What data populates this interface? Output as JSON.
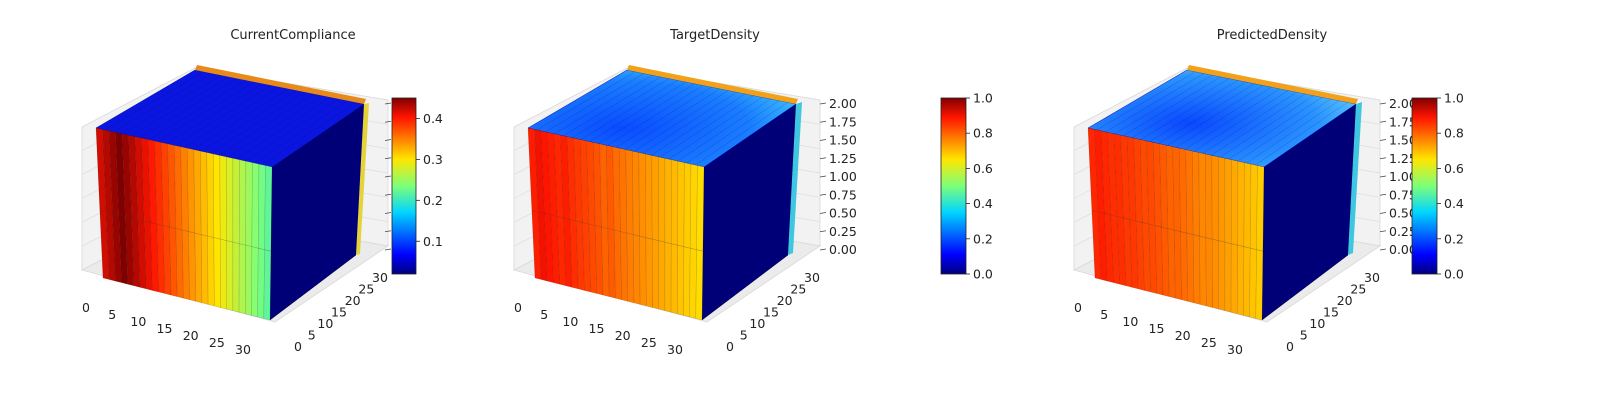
{
  "chart_data": [
    {
      "type": "3d-voxel",
      "title": "CurrentCompliance",
      "x_ticks": [
        "0",
        "5",
        "10",
        "15",
        "20",
        "25",
        "30"
      ],
      "y_ticks": [
        "0",
        "5",
        "10",
        "15",
        "20",
        "25",
        "30"
      ],
      "z_ticks": [],
      "colorbar": {
        "ticks": [
          "0.1",
          "0.2",
          "0.3",
          "0.4"
        ],
        "range": [
          0.02,
          0.45
        ]
      },
      "front_face_values": [
        0.42,
        0.43,
        0.44,
        0.45,
        0.44,
        0.43,
        0.42,
        0.41,
        0.4,
        0.39,
        0.38,
        0.37,
        0.36,
        0.35,
        0.34,
        0.33,
        0.32,
        0.31,
        0.3,
        0.29,
        0.28,
        0.27,
        0.26,
        0.25,
        0.24,
        0.23,
        0.22
      ]
    },
    {
      "type": "3d-voxel",
      "title": "TargetDensity",
      "x_ticks": [
        "0",
        "5",
        "10",
        "15",
        "20",
        "25",
        "30"
      ],
      "y_ticks": [
        "0",
        "5",
        "10",
        "15",
        "20",
        "25",
        "30"
      ],
      "z_ticks": [
        "0.00",
        "0.25",
        "0.50",
        "0.75",
        "1.00",
        "1.25",
        "1.50",
        "1.75",
        "2.00"
      ],
      "colorbar": {
        "ticks": [
          "0.0",
          "0.2",
          "0.4",
          "0.6",
          "0.8",
          "1.0"
        ],
        "range": [
          0,
          1
        ]
      },
      "front_face_values": [
        0.88,
        0.9,
        0.89,
        0.88,
        0.87,
        0.88,
        0.86,
        0.85,
        0.84,
        0.83,
        0.82,
        0.8,
        0.81,
        0.79,
        0.78,
        0.77,
        0.76,
        0.75,
        0.74,
        0.73,
        0.72,
        0.71,
        0.7,
        0.69,
        0.68,
        0.67,
        0.66
      ]
    },
    {
      "type": "3d-voxel",
      "title": "PredictedDensity",
      "x_ticks": [
        "0",
        "5",
        "10",
        "15",
        "20",
        "25",
        "30"
      ],
      "y_ticks": [
        "0",
        "5",
        "10",
        "15",
        "20",
        "25",
        "30"
      ],
      "z_ticks": [
        "0.00",
        "0.25",
        "0.50",
        "0.75",
        "1.00",
        "1.25",
        "1.50",
        "1.75",
        "2.00"
      ],
      "colorbar": {
        "ticks": [
          "0.0",
          "0.2",
          "0.4",
          "0.6",
          "0.8",
          "1.0"
        ],
        "range": [
          0,
          1
        ]
      },
      "front_face_values": [
        0.87,
        0.88,
        0.87,
        0.86,
        0.86,
        0.85,
        0.85,
        0.84,
        0.83,
        0.83,
        0.82,
        0.81,
        0.8,
        0.8,
        0.79,
        0.78,
        0.77,
        0.76,
        0.76,
        0.75,
        0.74,
        0.73,
        0.72,
        0.71,
        0.7,
        0.69,
        0.68
      ]
    }
  ]
}
